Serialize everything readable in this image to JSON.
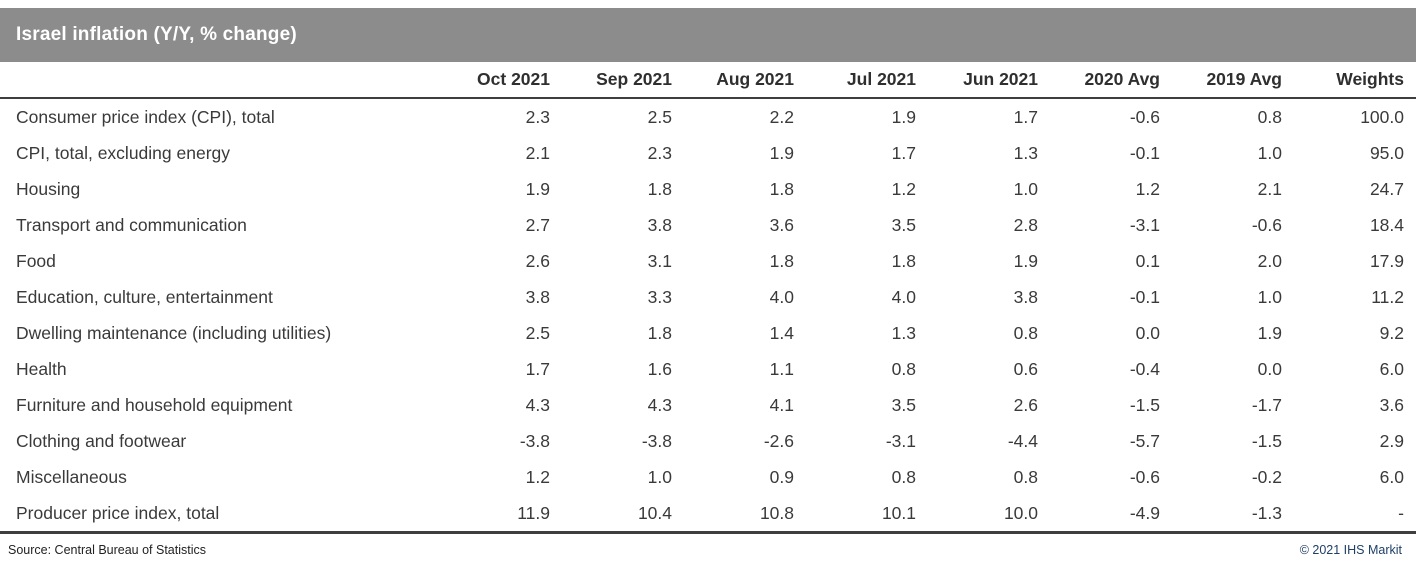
{
  "title": "Israel inflation (Y/Y, % change)",
  "chart_data": {
    "type": "table",
    "title": "Israel inflation (Y/Y, % change)",
    "columns": [
      "Oct 2021",
      "Sep 2021",
      "Aug 2021",
      "Jul 2021",
      "Jun 2021",
      "2020 Avg",
      "2019 Avg",
      "Weights"
    ],
    "rows": [
      {
        "label": "Consumer price index (CPI), total",
        "values": [
          "2.3",
          "2.5",
          "2.2",
          "1.9",
          "1.7",
          "-0.6",
          "0.8",
          "100.0"
        ]
      },
      {
        "label": "CPI, total, excluding energy",
        "values": [
          "2.1",
          "2.3",
          "1.9",
          "1.7",
          "1.3",
          "-0.1",
          "1.0",
          "95.0"
        ]
      },
      {
        "label": "Housing",
        "values": [
          "1.9",
          "1.8",
          "1.8",
          "1.2",
          "1.0",
          "1.2",
          "2.1",
          "24.7"
        ]
      },
      {
        "label": "Transport and communication",
        "values": [
          "2.7",
          "3.8",
          "3.6",
          "3.5",
          "2.8",
          "-3.1",
          "-0.6",
          "18.4"
        ]
      },
      {
        "label": "Food",
        "values": [
          "2.6",
          "3.1",
          "1.8",
          "1.8",
          "1.9",
          "0.1",
          "2.0",
          "17.9"
        ]
      },
      {
        "label": "Education, culture, entertainment",
        "values": [
          "3.8",
          "3.3",
          "4.0",
          "4.0",
          "3.8",
          "-0.1",
          "1.0",
          "11.2"
        ]
      },
      {
        "label": "Dwelling maintenance (including utilities)",
        "values": [
          "2.5",
          "1.8",
          "1.4",
          "1.3",
          "0.8",
          "0.0",
          "1.9",
          "9.2"
        ]
      },
      {
        "label": "Health",
        "values": [
          "1.7",
          "1.6",
          "1.1",
          "0.8",
          "0.6",
          "-0.4",
          "0.0",
          "6.0"
        ]
      },
      {
        "label": "Furniture and household equipment",
        "values": [
          "4.3",
          "4.3",
          "4.1",
          "3.5",
          "2.6",
          "-1.5",
          "-1.7",
          "3.6"
        ]
      },
      {
        "label": "Clothing and footwear",
        "values": [
          "-3.8",
          "-3.8",
          "-2.6",
          "-3.1",
          "-4.4",
          "-5.7",
          "-1.5",
          "2.9"
        ]
      },
      {
        "label": "Miscellaneous",
        "values": [
          "1.2",
          "1.0",
          "0.9",
          "0.8",
          "0.8",
          "-0.6",
          "-0.2",
          "6.0"
        ]
      },
      {
        "label": "Producer price index, total",
        "values": [
          "11.9",
          "10.4",
          "10.8",
          "10.1",
          "10.0",
          "-4.9",
          "-1.3",
          "-"
        ]
      }
    ]
  },
  "footer": {
    "source": "Source: Central Bureau of Statistics",
    "copyright": "© 2021 IHS Markit"
  },
  "colors": {
    "header_bar": "#8c8c8c",
    "header_text": "#ffffff",
    "body_text": "#3a3a3a",
    "rule": "#3e3e3e",
    "copyright_text": "#1f3f66"
  }
}
